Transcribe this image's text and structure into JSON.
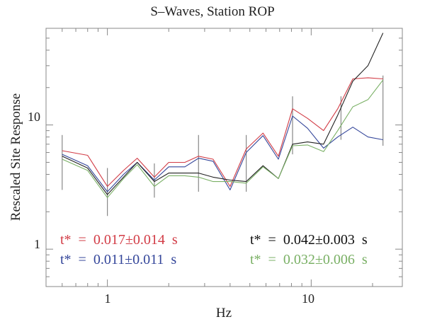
{
  "chart_data": {
    "type": "line",
    "title": "S–Waves, Station ROP",
    "xlabel": "Hz",
    "ylabel": "Rescaled Site Response",
    "x_scale": "log",
    "y_scale": "log",
    "xlim": [
      0.5,
      28
    ],
    "ylim": [
      0.5,
      60
    ],
    "x_major_ticks": [
      1,
      10
    ],
    "y_major_ticks": [
      1,
      10
    ],
    "x_tick_labels": [
      "1",
      "10"
    ],
    "y_tick_labels": [
      "1",
      "10"
    ],
    "x": [
      0.6,
      0.8,
      1.0,
      1.2,
      1.4,
      1.7,
      2.0,
      2.4,
      2.8,
      3.3,
      4.0,
      4.8,
      5.8,
      6.9,
      8.1,
      9.6,
      11.5,
      13.5,
      16.0,
      19.0,
      22.5
    ],
    "series": [
      {
        "color": "#d23c46",
        "values": [
          6.2,
          5.7,
          3.2,
          4.3,
          5.4,
          3.8,
          5.0,
          5.0,
          5.6,
          5.3,
          3.2,
          6.4,
          8.6,
          5.6,
          13.5,
          11.3,
          9.0,
          13.5,
          23.5,
          24.0,
          23.5
        ]
      },
      {
        "color": "#34469a",
        "values": [
          5.8,
          4.7,
          2.9,
          4.0,
          5.0,
          3.6,
          4.6,
          4.6,
          5.4,
          5.1,
          3.0,
          6.0,
          8.2,
          5.3,
          11.8,
          9.4,
          6.5,
          8.0,
          9.6,
          8.0,
          7.6
        ]
      },
      {
        "color": "#222222",
        "values": [
          5.6,
          4.5,
          2.75,
          3.8,
          5.0,
          3.5,
          4.1,
          4.1,
          4.1,
          3.8,
          3.6,
          3.5,
          4.7,
          3.7,
          7.0,
          7.3,
          7.0,
          12.0,
          22.5,
          30.0,
          55.0
        ]
      },
      {
        "color": "#7ab065",
        "values": [
          5.3,
          4.3,
          2.6,
          3.7,
          4.8,
          3.2,
          3.9,
          3.9,
          3.8,
          3.5,
          3.5,
          3.4,
          4.6,
          3.7,
          6.8,
          6.9,
          6.1,
          9.0,
          14.0,
          16.0,
          23.0
        ]
      }
    ],
    "error_bars": {
      "color": "#888888",
      "items": [
        {
          "x": 0.6,
          "low": 3.0,
          "high": 8.3
        },
        {
          "x": 1.0,
          "low": 1.85,
          "high": 4.5
        },
        {
          "x": 1.7,
          "low": 2.6,
          "high": 4.9
        },
        {
          "x": 2.8,
          "low": 2.9,
          "high": 8.3
        },
        {
          "x": 4.8,
          "low": 2.9,
          "high": 8.3
        },
        {
          "x": 8.1,
          "low": 5.8,
          "high": 17.0
        },
        {
          "x": 14.0,
          "low": 7.6,
          "high": 17.0
        },
        {
          "x": 22.5,
          "low": 6.8,
          "high": 25.0
        }
      ]
    },
    "annotations": [
      {
        "text": "t*  =  0.017±0.014  s",
        "color": "#d23c46"
      },
      {
        "text": "t*  =  0.011±0.011  s",
        "color": "#34469a"
      },
      {
        "text": "t*  =  0.042±0.003  s",
        "color": "#111111"
      },
      {
        "text": "t*  =  0.032±0.006  s",
        "color": "#7ab065"
      }
    ],
    "grid": false,
    "legend": "none"
  }
}
